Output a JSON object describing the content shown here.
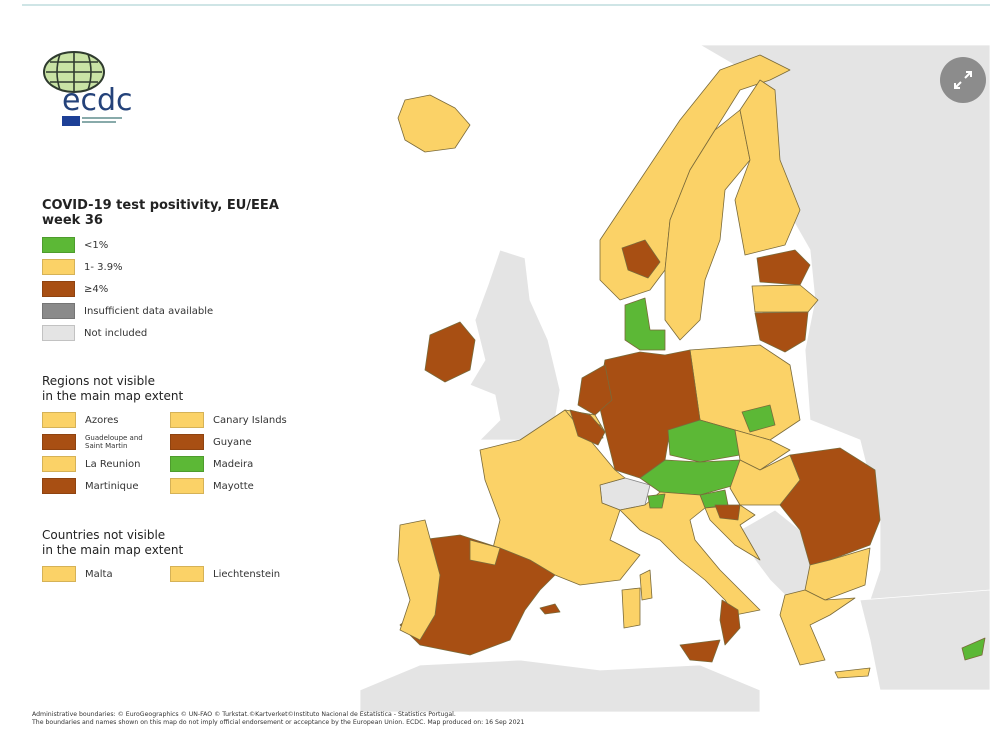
{
  "legend": {
    "title_line1": "COVID-19 test positivity, EU/EEA",
    "title_line2": "week 36",
    "items": [
      {
        "label": "<1%",
        "color": "#5cb836"
      },
      {
        "label": "1- 3.9%",
        "color": "#fbd267"
      },
      {
        "label": "≥4%",
        "color": "#a84f13"
      },
      {
        "label": "Insufficient data available",
        "color": "#8a8a8a"
      },
      {
        "label": "Not included",
        "color": "#e4e4e4"
      }
    ]
  },
  "regions": {
    "title_line1": "Regions not visible",
    "title_line2": "in the main map extent",
    "items": [
      {
        "label": "Azores",
        "color": "#fbd267"
      },
      {
        "label": "Canary Islands",
        "color": "#fbd267"
      },
      {
        "label": "Guadeloupe and Saint Martin",
        "color": "#a84f13"
      },
      {
        "label": "Guyane",
        "color": "#a84f13"
      },
      {
        "label": "La Reunion",
        "color": "#fbd267"
      },
      {
        "label": "Madeira",
        "color": "#5cb836"
      },
      {
        "label": "Martinique",
        "color": "#a84f13"
      },
      {
        "label": "Mayotte",
        "color": "#fbd267"
      }
    ]
  },
  "countries": {
    "title_line1": "Countries not visible",
    "title_line2": "in the main map extent",
    "items": [
      {
        "label": "Malta",
        "color": "#fbd267"
      },
      {
        "label": "Liechtenstein",
        "color": "#fbd267"
      }
    ]
  },
  "logo": {
    "text": "ecdc"
  },
  "credits": {
    "line1": "Administrative boundaries: © EuroGeographics © UN-FAO © Turkstat.©Kartverket©Instituto Nacional de Estatística - Statistics Portugal.",
    "line2": "The boundaries and names shown on this map do not imply official endorsement or acceptance by the European Union. ECDC. Map produced on: 16 Sep 2021"
  },
  "colors": {
    "green": "#5cb836",
    "yellow": "#fbd267",
    "brown": "#a84f13",
    "grey": "#e4e4e4",
    "border": "#6b5a2a"
  }
}
